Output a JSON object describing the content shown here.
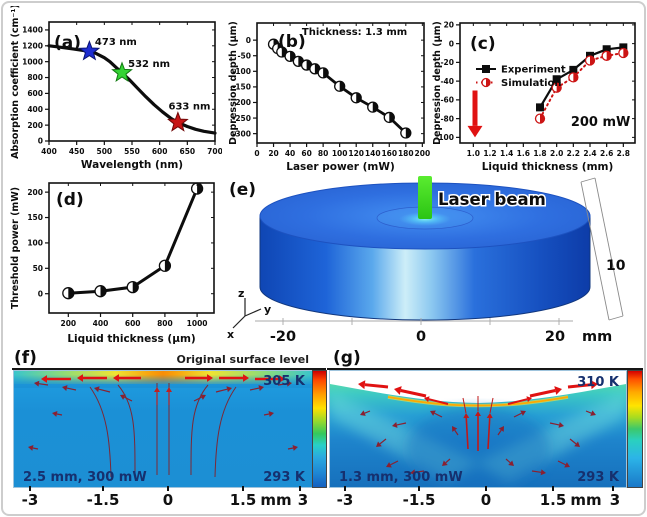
{
  "colors": {
    "accent_red": "#e01212",
    "laser_green": "#3fe01f",
    "navy_text": "#16306e",
    "star_blue": "#1c2cd0",
    "star_green": "#35d435",
    "star_red": "#c81616"
  },
  "chart_data": [
    {
      "id": "a",
      "type": "line",
      "panel_label": "(a)",
      "xlabel": "Wavelength (nm)",
      "ylabel": "Absorption coefficient (cm⁻¹)",
      "xlim": [
        400,
        700
      ],
      "ylim": [
        0,
        1500
      ],
      "xticks": [
        400,
        450,
        500,
        550,
        600,
        650,
        700
      ],
      "yticks": [
        0,
        200,
        400,
        600,
        800,
        1000,
        1200,
        1400
      ],
      "series": [
        {
          "name": "absorption spectrum",
          "color": "#0d0d0d",
          "width": 3.2,
          "style": "solid",
          "marker": null,
          "x": [
            400,
            415,
            430,
            445,
            460,
            473,
            485,
            500,
            510,
            520,
            532,
            545,
            560,
            575,
            590,
            605,
            620,
            633,
            650,
            665,
            680,
            700
          ],
          "y": [
            1200,
            1188,
            1174,
            1158,
            1143,
            1130,
            1104,
            1050,
            1000,
            935,
            860,
            775,
            665,
            558,
            458,
            368,
            288,
            233,
            183,
            148,
            122,
            100
          ]
        }
      ],
      "points": [
        {
          "x": 473,
          "y": 1130,
          "marker": "star",
          "size": 10,
          "fill": "#1c2cd0",
          "stroke": "#0a1470",
          "label": "473 nm",
          "lx": 483,
          "ly": 1210,
          "anchor": "start"
        },
        {
          "x": 532,
          "y": 860,
          "marker": "star",
          "size": 10,
          "fill": "#35d435",
          "stroke": "#117a11",
          "label": "532 nm",
          "lx": 543,
          "ly": 935,
          "anchor": "start"
        },
        {
          "x": 633,
          "y": 233,
          "marker": "star",
          "size": 10,
          "fill": "#c81616",
          "stroke": "#700707",
          "label": "633 nm",
          "lx": 616,
          "ly": 395,
          "anchor": "start"
        }
      ]
    },
    {
      "id": "b",
      "type": "line",
      "panel_label": "(b)",
      "xlabel": "Laser power (mW)",
      "ylabel": "Depression depth (μm)",
      "xlim": [
        0,
        202
      ],
      "ylim": [
        -330,
        55
      ],
      "xticks": [
        0,
        20,
        40,
        60,
        80,
        100,
        120,
        140,
        160,
        180,
        200
      ],
      "yticks": [
        0,
        -50,
        -100,
        -150,
        -200,
        -250,
        -300
      ],
      "series": [
        {
          "name": "depression depth",
          "color": "#0d0d0d",
          "width": 2.8,
          "style": "solid",
          "marker": "halfcircle",
          "msize": 5,
          "x": [
            20,
            25,
            30,
            40,
            50,
            60,
            70,
            80,
            100,
            120,
            140,
            160,
            180
          ],
          "y": [
            -13,
            -27,
            -38,
            -52,
            -68,
            -80,
            -92,
            -105,
            -148,
            -185,
            -215,
            -248,
            -298
          ]
        }
      ],
      "texts": [
        {
          "text": "Thickness: 1.3 mm",
          "x": 118,
          "y": 16,
          "size": 10,
          "anchor": "middle",
          "color": "#0d0d0d"
        }
      ]
    },
    {
      "id": "c",
      "type": "line",
      "panel_label": "(c)",
      "xlabel": "Liquid thickness (mm)",
      "ylabel": "Depression depth (μm)",
      "xlim": [
        0.84,
        2.94
      ],
      "ylim": [
        -106,
        22
      ],
      "xticks": [
        1.0,
        1.2,
        1.4,
        1.6,
        1.8,
        2.0,
        2.2,
        2.4,
        2.6,
        2.8
      ],
      "xtick_labels": [
        "1.0",
        "1.2",
        "1.4",
        "1.6",
        "1.8",
        "2.0",
        "2.2",
        "2.4",
        "2.6",
        "2.8"
      ],
      "yticks": [
        20,
        0,
        -20,
        -40,
        -60,
        -80,
        -100
      ],
      "series": [
        {
          "name": "Experiment",
          "color": "#0d0d0d",
          "width": 2.2,
          "style": "solid",
          "marker": "square",
          "msize": 4,
          "x": [
            1.8,
            2.0,
            2.2,
            2.4,
            2.6,
            2.8
          ],
          "y": [
            -68,
            -38,
            -28,
            -13,
            -6,
            -4
          ]
        },
        {
          "name": "Simulation",
          "color": "#cc1414",
          "width": 2,
          "style": "dotted",
          "marker": "halfcircle",
          "msize": 4.5,
          "x": [
            1.8,
            2.0,
            2.2,
            2.4,
            2.6,
            2.8
          ],
          "y": [
            -80,
            -47,
            -36,
            -18,
            -13,
            -10
          ]
        }
      ],
      "legend": {
        "entries": [
          {
            "label": "Experiment",
            "color": "#0d0d0d",
            "style": "solid",
            "marker": "square"
          },
          {
            "label": "Simulation",
            "color": "#cc1414",
            "style": "dotted",
            "marker": "halfcircle"
          }
        ]
      },
      "texts": [
        {
          "text": "200 mW",
          "x": 2.17,
          "y": -88,
          "size": 13,
          "anchor": "start",
          "color": "#0d0d0d"
        }
      ],
      "arrows": [
        {
          "x1": 1.02,
          "y1": -50,
          "x2": 1.02,
          "y2": -100,
          "color": "#e01212",
          "width": 5
        }
      ]
    },
    {
      "id": "d",
      "type": "line",
      "panel_label": "(d)",
      "xlabel": "Liquid thickness (μm)",
      "ylabel": "Threshold power (mW)",
      "xlim": [
        80,
        1105
      ],
      "ylim": [
        -38,
        218
      ],
      "xticks": [
        200,
        400,
        600,
        800,
        1000
      ],
      "yticks": [
        0,
        50,
        100,
        150,
        200
      ],
      "series": [
        {
          "name": "threshold power",
          "color": "#0d0d0d",
          "width": 3,
          "style": "solid",
          "marker": "halfcircle",
          "msize": 5.5,
          "x": [
            200,
            400,
            600,
            800,
            1000
          ],
          "y": [
            1,
            5,
            13,
            55,
            207
          ]
        }
      ]
    },
    {
      "id": "e",
      "type": "diagram",
      "panel_label": "(e)",
      "beam_label": "Laser beam",
      "z_dim": "10",
      "axis_unit": "mm",
      "axis_ticks": [
        "-20",
        "0",
        "20"
      ],
      "axes": [
        "z",
        "y",
        "x"
      ]
    },
    {
      "id": "f",
      "type": "heatmap",
      "panel_label": "(f)",
      "surface_label": "Original surface level",
      "temp_max": "305 K",
      "temp_min": "293 K",
      "condition": "2.5 mm, 300 mW",
      "x_ticks": [
        "-3",
        "-1.5",
        "0",
        "1.5",
        "mm",
        "3"
      ]
    },
    {
      "id": "g",
      "type": "heatmap",
      "panel_label": "(g)",
      "temp_max": "310 K",
      "temp_min": "293 K",
      "condition": "1.3 mm, 300 mW",
      "x_ticks": [
        "-3",
        "-1.5",
        "0",
        "1.5",
        "mm",
        "3"
      ]
    }
  ]
}
